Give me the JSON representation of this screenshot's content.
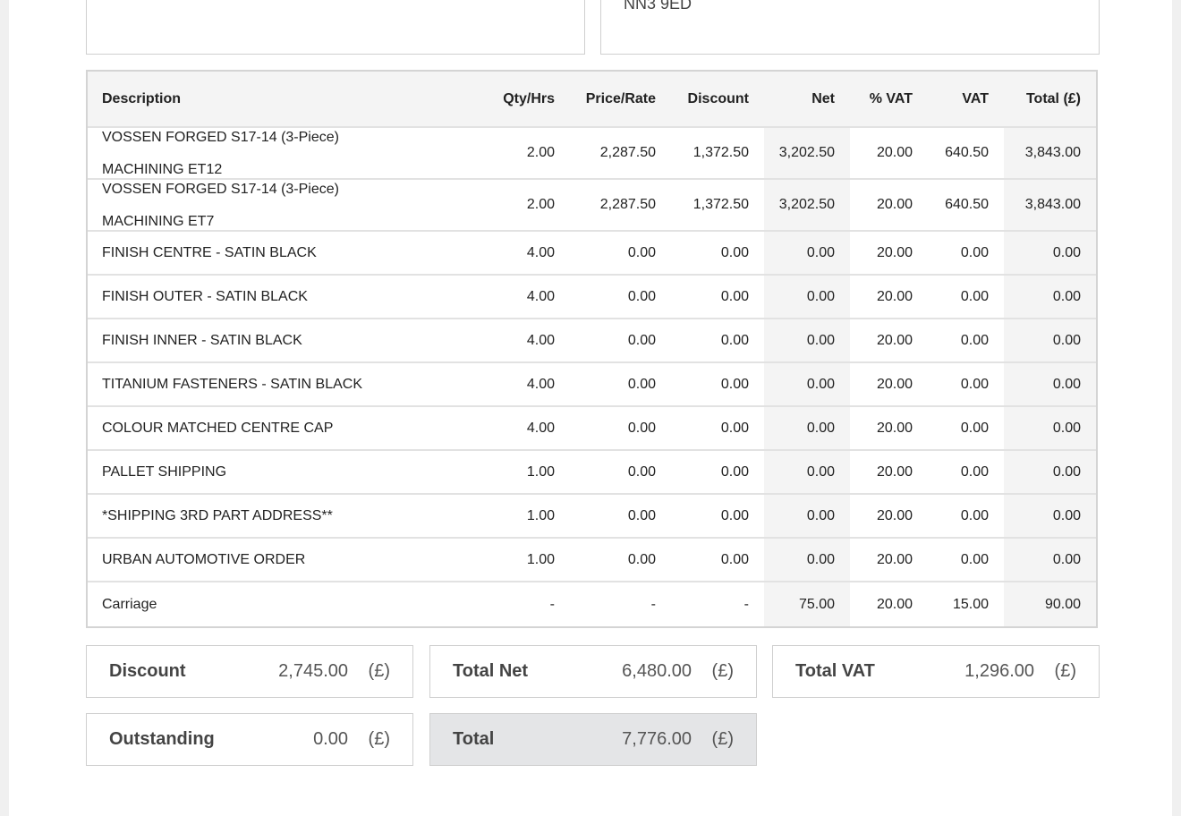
{
  "address_line": "NN3 9ED",
  "table": {
    "headers": [
      "Description",
      "Qty/Hrs",
      "Price/Rate",
      "Discount",
      "Net",
      "% VAT",
      "VAT",
      "Total (£)"
    ],
    "rows": [
      {
        "description": [
          "VOSSEN FORGED S17-14 (3-Piece)",
          "MACHINING ET12"
        ],
        "cells": [
          "2.00",
          "2,287.50",
          "1,372.50",
          "3,202.50",
          "20.00",
          "640.50",
          "3,843.00"
        ]
      },
      {
        "description": [
          "VOSSEN FORGED S17-14 (3-Piece)",
          "MACHINING ET7"
        ],
        "cells": [
          "2.00",
          "2,287.50",
          "1,372.50",
          "3,202.50",
          "20.00",
          "640.50",
          "3,843.00"
        ]
      },
      {
        "description": [
          "FINISH CENTRE - SATIN BLACK"
        ],
        "cells": [
          "4.00",
          "0.00",
          "0.00",
          "0.00",
          "20.00",
          "0.00",
          "0.00"
        ]
      },
      {
        "description": [
          "FINISH OUTER - SATIN BLACK"
        ],
        "cells": [
          "4.00",
          "0.00",
          "0.00",
          "0.00",
          "20.00",
          "0.00",
          "0.00"
        ]
      },
      {
        "description": [
          "FINISH INNER - SATIN BLACK"
        ],
        "cells": [
          "4.00",
          "0.00",
          "0.00",
          "0.00",
          "20.00",
          "0.00",
          "0.00"
        ]
      },
      {
        "description": [
          "TITANIUM FASTENERS - SATIN BLACK"
        ],
        "cells": [
          "4.00",
          "0.00",
          "0.00",
          "0.00",
          "20.00",
          "0.00",
          "0.00"
        ]
      },
      {
        "description": [
          "COLOUR MATCHED CENTRE CAP"
        ],
        "cells": [
          "4.00",
          "0.00",
          "0.00",
          "0.00",
          "20.00",
          "0.00",
          "0.00"
        ]
      },
      {
        "description": [
          "PALLET SHIPPING"
        ],
        "cells": [
          "1.00",
          "0.00",
          "0.00",
          "0.00",
          "20.00",
          "0.00",
          "0.00"
        ]
      },
      {
        "description": [
          "*SHIPPING 3RD PART ADDRESS**"
        ],
        "cells": [
          "1.00",
          "0.00",
          "0.00",
          "0.00",
          "20.00",
          "0.00",
          "0.00"
        ]
      },
      {
        "description": [
          "URBAN AUTOMOTIVE ORDER"
        ],
        "cells": [
          "1.00",
          "0.00",
          "0.00",
          "0.00",
          "20.00",
          "0.00",
          "0.00"
        ]
      },
      {
        "description": [
          "Carriage"
        ],
        "cells": [
          "-",
          "-",
          "-",
          "75.00",
          "20.00",
          "15.00",
          "90.00"
        ]
      }
    ]
  },
  "summary": [
    {
      "label": "Discount",
      "value": "2,745.00",
      "unit": "(£)"
    },
    {
      "label": "Total Net",
      "value": "6,480.00",
      "unit": "(£)"
    },
    {
      "label": "Total VAT",
      "value": "1,296.00",
      "unit": "(£)"
    },
    {
      "label": "Outstanding",
      "value": "0.00",
      "unit": "(£)"
    },
    {
      "label": "Total",
      "value": "7,776.00",
      "unit": "(£)"
    }
  ]
}
